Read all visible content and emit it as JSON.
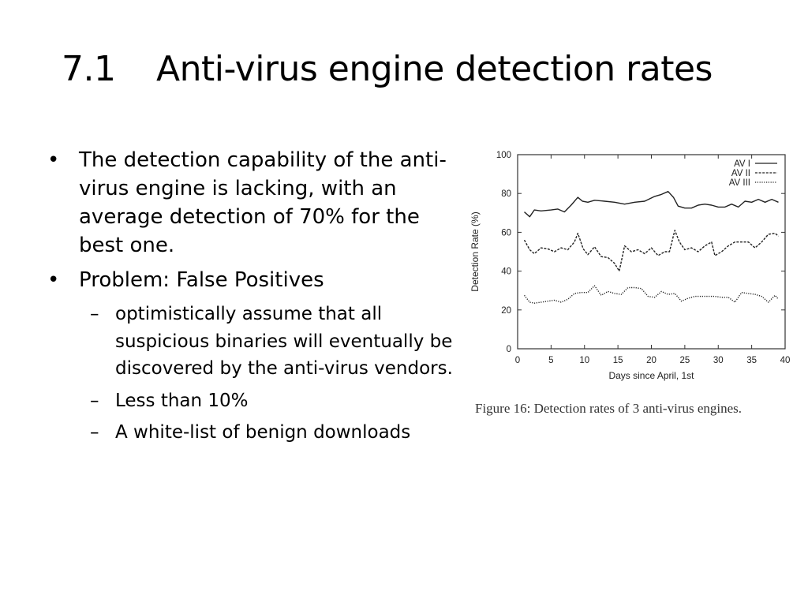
{
  "slide": {
    "title_number": "7.1",
    "title_text": "Anti-virus engine detection rates"
  },
  "bullets": [
    {
      "marker": "•",
      "text": "The detection capability of the anti-virus engine is lacking, with an average detection of 70% for the best one."
    },
    {
      "marker": "•",
      "text": "Problem: False Positives",
      "sub": [
        {
          "marker": "–",
          "text": "optimistically assume that all suspicious binaries will eventually be discovered by the anti-virus vendors."
        },
        {
          "marker": "–",
          "text": "Less than 10%"
        },
        {
          "marker": "–",
          "text": "A white-list of benign downloads"
        }
      ]
    }
  ],
  "figure": {
    "caption": "Figure 16: Detection rates of 3 anti-virus engines."
  },
  "chart_data": {
    "type": "line",
    "title": "",
    "xlabel": "Days since April, 1st",
    "ylabel": "Detection Rate (%)",
    "xlim": [
      0,
      40
    ],
    "ylim": [
      0,
      100
    ],
    "x_ticks": [
      0,
      5,
      10,
      15,
      20,
      25,
      30,
      35,
      40
    ],
    "y_ticks": [
      0,
      20,
      40,
      60,
      80,
      100
    ],
    "grid": false,
    "legend_position": "top-right",
    "series": [
      {
        "name": "AV I",
        "style": "solid",
        "color": "#222222",
        "x": [
          1,
          1.8,
          2.5,
          3.5,
          5,
          6,
          7,
          8,
          9,
          9.7,
          10.5,
          11.5,
          13,
          14.5,
          16,
          17.5,
          19,
          20.5,
          21.5,
          22.5,
          23.3,
          24,
          25,
          26,
          27,
          28,
          29,
          30,
          31,
          32,
          33,
          34,
          35,
          36,
          37,
          38,
          39
        ],
        "y": [
          70.5,
          68,
          71.5,
          71,
          71.5,
          72,
          70.5,
          74,
          78,
          76,
          75.5,
          76.5,
          76,
          75.5,
          74.5,
          75.5,
          76,
          78.5,
          79.5,
          81,
          78,
          73.5,
          72.5,
          72.5,
          74,
          74.5,
          74,
          73,
          73,
          74.5,
          73,
          76,
          75.5,
          77,
          75.5,
          77,
          75.5
        ]
      },
      {
        "name": "AV II",
        "style": "dashed",
        "color": "#222222",
        "x": [
          1,
          1.8,
          2.5,
          3.5,
          4.5,
          5.5,
          6.5,
          7.5,
          8.5,
          9,
          9.8,
          10.5,
          11.5,
          12.5,
          13.5,
          14.5,
          15.2,
          16,
          17,
          18,
          19,
          20,
          21,
          22,
          22.7,
          23.5,
          24.2,
          25,
          26,
          27,
          28,
          29,
          29.5,
          30.5,
          31.5,
          32.5,
          33.5,
          34.5,
          35.5,
          36.5,
          37.5,
          38.5,
          39
        ],
        "y": [
          56,
          51,
          49,
          52,
          51.5,
          50,
          52,
          51,
          55,
          59.5,
          51.5,
          48.5,
          52.5,
          47.5,
          47,
          44,
          40,
          53,
          50,
          51,
          49,
          52,
          48,
          50,
          50,
          61,
          55,
          51,
          52,
          50,
          53,
          55,
          48,
          50,
          53,
          55,
          55,
          55,
          52,
          55,
          59,
          59.5,
          58
        ]
      },
      {
        "name": "AV III",
        "style": "dotted",
        "color": "#222222",
        "x": [
          1,
          1.8,
          2.5,
          3.5,
          4.5,
          5.5,
          6.5,
          7.5,
          8.5,
          9.5,
          10.5,
          11.5,
          12.5,
          13.5,
          14.5,
          15.5,
          16.5,
          17.5,
          18.5,
          19.5,
          20.5,
          21.5,
          22.5,
          23.5,
          24.5,
          25.5,
          26.5,
          27.5,
          28.5,
          29.5,
          30.5,
          31.5,
          32.5,
          33.5,
          34.5,
          35.5,
          36.5,
          37.5,
          38.5,
          39
        ],
        "y": [
          27.5,
          24,
          23.5,
          24,
          24.5,
          25,
          24,
          25.5,
          28.5,
          29,
          29,
          32.5,
          27.5,
          29.5,
          28.5,
          28,
          31.5,
          31.5,
          31,
          27,
          26.5,
          29.5,
          28,
          28.5,
          24.5,
          26,
          27,
          27,
          27,
          27,
          26.5,
          26.5,
          24,
          29,
          28.5,
          28,
          27,
          24,
          27.5,
          25.5
        ]
      }
    ]
  }
}
